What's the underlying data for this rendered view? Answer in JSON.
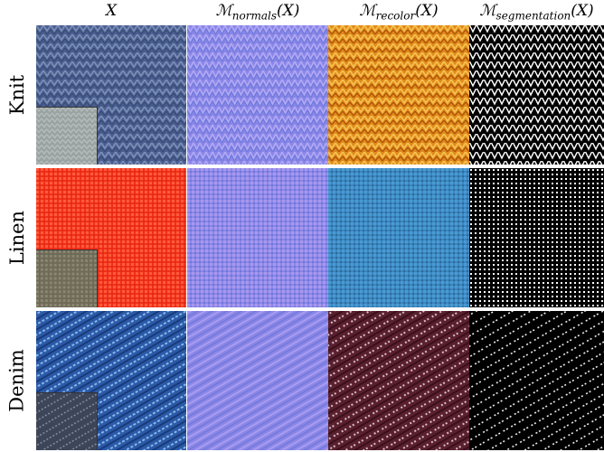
{
  "columns": [
    {
      "label": "X",
      "key": "input"
    },
    {
      "label": "ℳnormals(X)",
      "main": "ℳ",
      "sub": "normals",
      "suffix": "(X)",
      "key": "normals"
    },
    {
      "label": "ℳrecolor(X)",
      "main": "ℳ",
      "sub": "recolor",
      "suffix": "(X)",
      "key": "recolor"
    },
    {
      "label": "ℳsegmentation(X)",
      "main": "ℳ",
      "sub": "segmentation",
      "suffix": "(X)",
      "key": "segmentation"
    }
  ],
  "rows": [
    {
      "label": "Knit"
    },
    {
      "label": "Linen"
    },
    {
      "label": "Denim"
    }
  ],
  "colors": {
    "knit_input": "#4a5f8f",
    "knit_inset": "#9aa3a2",
    "normals": "#8a86e8",
    "knit_recolor": "#e08a1a",
    "linen_input": "#f0301a",
    "linen_inset": "#6e6a58",
    "linen_recolor": "#3a86c0",
    "denim_input": "#2a5aa8",
    "denim_inset": "#3c4658",
    "denim_recolor": "#5a2030",
    "segmentation": "#000000"
  }
}
